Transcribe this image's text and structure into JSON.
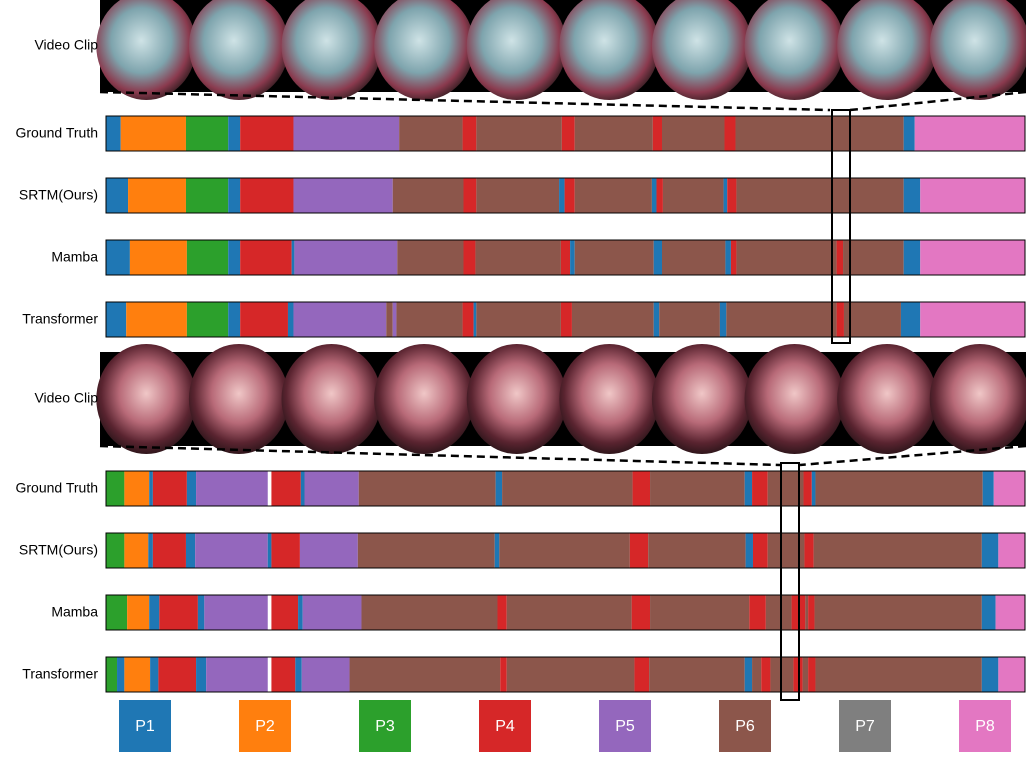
{
  "blocks": [
    {
      "clip_label": "Video Clip",
      "rows": [
        {
          "label": "Ground Truth",
          "segments": [
            [
              0,
              0,
              1.6
            ],
            [
              1,
              1.6,
              8.7
            ],
            [
              2,
              8.7,
              13.3
            ],
            [
              0,
              13.3,
              14.6
            ],
            [
              3,
              14.6,
              20.4
            ],
            [
              4,
              20.4,
              31.9
            ],
            [
              5,
              31.9,
              38.8
            ],
            [
              3,
              38.8,
              40.3
            ],
            [
              5,
              40.3,
              49.6
            ],
            [
              3,
              49.6,
              51
            ],
            [
              5,
              51,
              59.5
            ],
            [
              3,
              59.5,
              60.5
            ],
            [
              5,
              60.5,
              67.3
            ],
            [
              3,
              67.3,
              68.5
            ],
            [
              5,
              68.5,
              86.8
            ],
            [
              0,
              86.8,
              88
            ],
            [
              7,
              88,
              100
            ]
          ]
        },
        {
          "label": "SRTM(Ours)",
          "segments": [
            [
              0,
              0,
              2.4
            ],
            [
              1,
              2.4,
              8.7
            ],
            [
              2,
              8.7,
              13.3
            ],
            [
              0,
              13.3,
              14.6
            ],
            [
              3,
              14.6,
              20.4
            ],
            [
              4,
              20.4,
              31.2
            ],
            [
              5,
              31.2,
              38.9
            ],
            [
              3,
              38.9,
              40.3
            ],
            [
              5,
              40.3,
              49.3
            ],
            [
              0,
              49.3,
              49.9
            ],
            [
              3,
              49.9,
              51
            ],
            [
              5,
              51,
              59.4
            ],
            [
              0,
              59.4,
              59.9
            ],
            [
              3,
              59.9,
              60.6
            ],
            [
              5,
              60.6,
              67.2
            ],
            [
              0,
              67.2,
              67.6
            ],
            [
              3,
              67.6,
              68.6
            ],
            [
              5,
              68.6,
              86.8
            ],
            [
              0,
              86.8,
              88.6
            ],
            [
              7,
              88.6,
              100
            ]
          ]
        },
        {
          "label": "Mamba",
          "segments": [
            [
              0,
              0,
              2.6
            ],
            [
              1,
              2.6,
              8.8
            ],
            [
              2,
              8.8,
              13.3
            ],
            [
              0,
              13.3,
              14.6
            ],
            [
              3,
              14.6,
              20.2
            ],
            [
              0,
              20.2,
              20.5
            ],
            [
              4,
              20.5,
              31.7
            ],
            [
              5,
              31.7,
              38.9
            ],
            [
              3,
              38.9,
              40.2
            ],
            [
              5,
              40.2,
              49.5
            ],
            [
              3,
              49.5,
              50.5
            ],
            [
              0,
              50.5,
              51
            ],
            [
              5,
              51,
              59.6
            ],
            [
              0,
              59.6,
              60.5
            ],
            [
              5,
              60.5,
              67.4
            ],
            [
              0,
              67.4,
              68
            ],
            [
              3,
              68,
              68.6
            ],
            [
              5,
              68.6,
              79.5
            ],
            [
              3,
              79.5,
              80.2
            ],
            [
              5,
              80.2,
              86.8
            ],
            [
              0,
              86.8,
              88.6
            ],
            [
              7,
              88.6,
              100
            ]
          ]
        },
        {
          "label": "Transformer",
          "segments": [
            [
              0,
              0,
              2.2
            ],
            [
              1,
              2.2,
              8.8
            ],
            [
              2,
              8.8,
              13.3
            ],
            [
              0,
              13.3,
              14.6
            ],
            [
              3,
              14.6,
              19.8
            ],
            [
              0,
              19.8,
              20.4
            ],
            [
              4,
              20.4,
              30.5
            ],
            [
              5,
              30.5,
              31.2
            ],
            [
              4,
              31.2,
              31.6
            ],
            [
              5,
              31.6,
              38.8
            ],
            [
              3,
              38.8,
              40
            ],
            [
              0,
              40,
              40.3
            ],
            [
              5,
              40.3,
              49.5
            ],
            [
              3,
              49.5,
              50.7
            ],
            [
              5,
              50.7,
              59.6
            ],
            [
              0,
              59.6,
              60.2
            ],
            [
              5,
              60.2,
              66.8
            ],
            [
              0,
              66.8,
              67.5
            ],
            [
              5,
              67.5,
              79.5
            ],
            [
              3,
              79.5,
              80.3
            ],
            [
              5,
              80.3,
              86.5
            ],
            [
              0,
              86.5,
              88.6
            ],
            [
              7,
              88.6,
              100
            ]
          ]
        }
      ]
    },
    {
      "clip_label": "Video Clip",
      "rows": [
        {
          "label": "Ground Truth",
          "segments": [
            [
              2,
              0,
              2
            ],
            [
              1,
              2,
              4.7
            ],
            [
              0,
              4.7,
              5.1
            ],
            [
              3,
              5.1,
              8.8
            ],
            [
              0,
              8.8,
              9.8
            ],
            [
              4,
              9.8,
              17.6
            ],
            [
              3,
              18,
              21.2
            ],
            [
              0,
              21.2,
              21.6
            ],
            [
              4,
              21.6,
              27.5
            ],
            [
              5,
              27.5,
              42.4
            ],
            [
              0,
              42.4,
              43.1
            ],
            [
              5,
              43.1,
              57.3
            ],
            [
              3,
              57.3,
              59.2
            ],
            [
              5,
              59.2,
              69.5
            ],
            [
              0,
              69.5,
              70.3
            ],
            [
              3,
              70.3,
              72
            ],
            [
              5,
              72,
              75.9
            ],
            [
              3,
              75.9,
              76.8
            ],
            [
              0,
              76.8,
              77.2
            ],
            [
              5,
              77.2,
              95.4
            ],
            [
              0,
              95.4,
              96.6
            ],
            [
              7,
              96.6,
              100
            ]
          ]
        },
        {
          "label": "SRTM(Ours)",
          "segments": [
            [
              2,
              0,
              2
            ],
            [
              1,
              2,
              4.6
            ],
            [
              0,
              4.6,
              5.1
            ],
            [
              3,
              5.1,
              8.7
            ],
            [
              0,
              8.7,
              9.7
            ],
            [
              4,
              9.7,
              17.6
            ],
            [
              0,
              17.6,
              18
            ],
            [
              3,
              18,
              21.1
            ],
            [
              4,
              21.1,
              27.4
            ],
            [
              5,
              27.4,
              42.3
            ],
            [
              0,
              42.3,
              42.8
            ],
            [
              5,
              42.8,
              57
            ],
            [
              3,
              57,
              59
            ],
            [
              5,
              59,
              69.6
            ],
            [
              0,
              69.6,
              70.4
            ],
            [
              3,
              70.4,
              72
            ],
            [
              5,
              72,
              76
            ],
            [
              3,
              76,
              77
            ],
            [
              5,
              77,
              95.3
            ],
            [
              0,
              95.3,
              97.1
            ],
            [
              7,
              97.1,
              100
            ]
          ]
        },
        {
          "label": "Mamba",
          "segments": [
            [
              2,
              0,
              2.3
            ],
            [
              1,
              2.3,
              4.7
            ],
            [
              0,
              4.7,
              5.8
            ],
            [
              3,
              5.8,
              10
            ],
            [
              0,
              10,
              10.7
            ],
            [
              4,
              10.7,
              17.6
            ],
            [
              3,
              18,
              20.9
            ],
            [
              0,
              20.9,
              21.4
            ],
            [
              4,
              21.4,
              27.8
            ],
            [
              5,
              27.8,
              42.6
            ],
            [
              3,
              42.6,
              43.6
            ],
            [
              5,
              43.6,
              57.2
            ],
            [
              3,
              57.2,
              59.2
            ],
            [
              5,
              59.2,
              70
            ],
            [
              3,
              70,
              71.8
            ],
            [
              5,
              71.8,
              74.6
            ],
            [
              3,
              74.6,
              76.1
            ],
            [
              5,
              76.1,
              76.4
            ],
            [
              3,
              76.4,
              77.1
            ],
            [
              5,
              77.1,
              95.3
            ],
            [
              0,
              95.3,
              96.8
            ],
            [
              7,
              96.8,
              100
            ]
          ]
        },
        {
          "label": "Transformer",
          "segments": [
            [
              2,
              0,
              1.2
            ],
            [
              0,
              1.2,
              2
            ],
            [
              1,
              2,
              4.8
            ],
            [
              0,
              4.8,
              5.7
            ],
            [
              3,
              5.7,
              9.8
            ],
            [
              0,
              9.8,
              10.9
            ],
            [
              4,
              10.9,
              17.6
            ],
            [
              3,
              18,
              20.6
            ],
            [
              0,
              20.6,
              21.3
            ],
            [
              4,
              21.3,
              26.5
            ],
            [
              5,
              26.5,
              42.9
            ],
            [
              3,
              42.9,
              43.6
            ],
            [
              5,
              43.6,
              57.5
            ],
            [
              3,
              57.5,
              59.1
            ],
            [
              5,
              59.1,
              69.5
            ],
            [
              0,
              69.5,
              70.3
            ],
            [
              5,
              70.3,
              71.3
            ],
            [
              3,
              71.3,
              72.3
            ],
            [
              5,
              72.3,
              74.8
            ],
            [
              3,
              74.8,
              75.8
            ],
            [
              5,
              75.8,
              76.4
            ],
            [
              3,
              76.4,
              77.2
            ],
            [
              5,
              77.2,
              95.3
            ],
            [
              0,
              95.3,
              97.1
            ],
            [
              7,
              97.1,
              100
            ]
          ]
        }
      ]
    }
  ],
  "legend": [
    {
      "label": "P1",
      "color": "#1f77b4"
    },
    {
      "label": "P2",
      "color": "#ff7f0e"
    },
    {
      "label": "P3",
      "color": "#2ca02c"
    },
    {
      "label": "P4",
      "color": "#d62728"
    },
    {
      "label": "P5",
      "color": "#9467bd"
    },
    {
      "label": "P6",
      "color": "#8c564b"
    },
    {
      "label": "P7",
      "color": "#7f7f7f"
    },
    {
      "label": "P8",
      "color": "#e377c2"
    }
  ]
}
